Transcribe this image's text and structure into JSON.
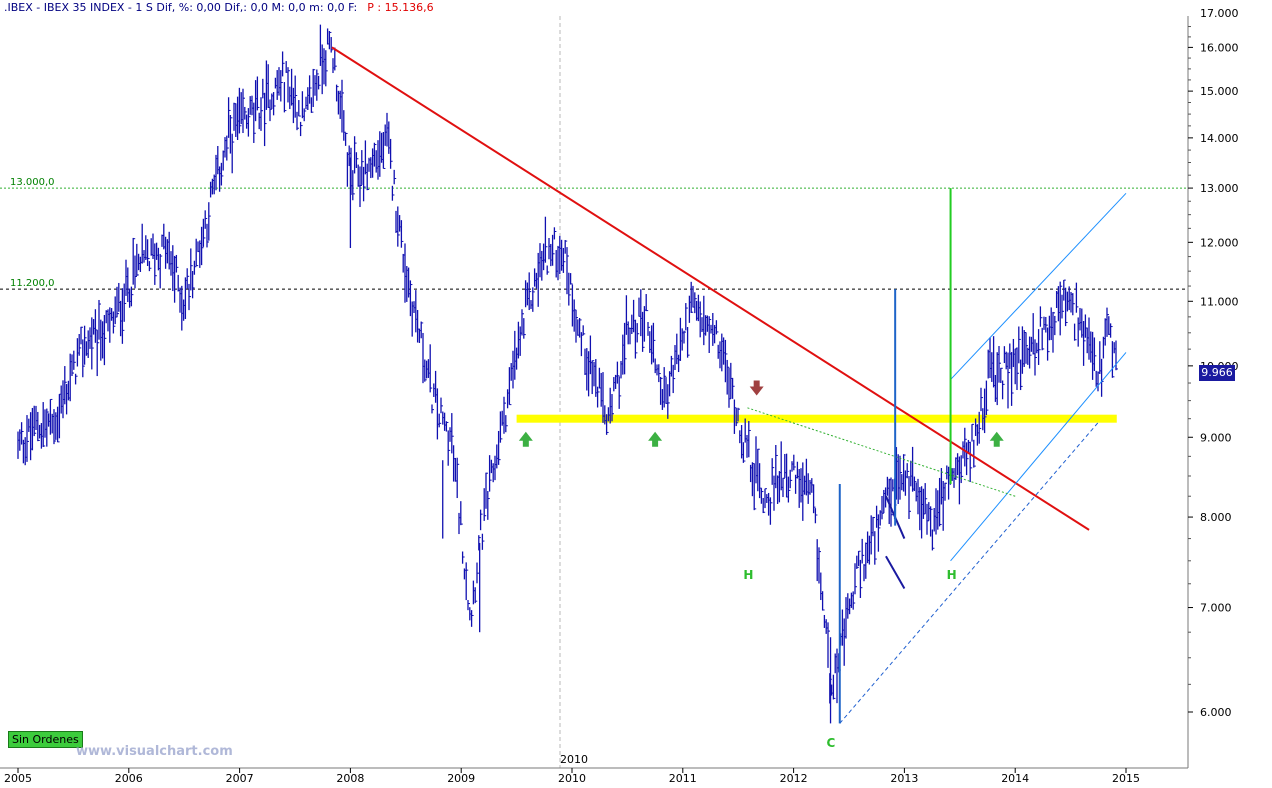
{
  "header": {
    "title": ".IBEX - IBEX 35 INDEX -  1 S Dif, %: 0,00 Dif,: 0,0 M: 0,0 m: 0,0 F:",
    "price": "P : 15.136,6"
  },
  "order_button": "Sin Ordenes",
  "watermark": "www.visualchart.com",
  "current_price_label": "9.966",
  "colors": {
    "bars": "#1010b0",
    "downtrend": "#e01010",
    "support_band": "#ffff00",
    "channel": "#1e90ff",
    "signal_arrow_up": "#3cb043",
    "signal_arrow_down": "#a04040",
    "vertical_green": "#22cc22",
    "vertical_blue": "#1e64c8"
  },
  "chart_data": {
    "type": "ohlc",
    "title": ".IBEX - IBEX 35 INDEX",
    "x_axis": {
      "type": "date",
      "ticks": [
        "2005",
        "2006",
        "2007",
        "2008",
        "2009",
        "2010",
        "2011",
        "2012",
        "2013",
        "2014",
        "2015"
      ],
      "marker": "2010"
    },
    "y_axis": {
      "scale": "log",
      "range": [
        5600,
        17000
      ],
      "ticks": [
        "6.000",
        "7.000",
        "8.000",
        "9.000",
        "10.000",
        "11.000",
        "12.000",
        "13.000",
        "14.000",
        "15.000",
        "16.000"
      ]
    },
    "horizontal_levels": [
      {
        "label": "13.000,0",
        "value": 13000
      },
      {
        "label": "11.200,0",
        "value": 11200
      }
    ],
    "price_path": [
      [
        "2005-01",
        8850
      ],
      [
        "2005-03",
        9150
      ],
      [
        "2005-05",
        9200
      ],
      [
        "2005-08",
        10300
      ],
      [
        "2005-11",
        10600
      ],
      [
        "2006-02",
        11600
      ],
      [
        "2006-05",
        11900
      ],
      [
        "2006-07",
        11000
      ],
      [
        "2006-10",
        12800
      ],
      [
        "2006-12",
        14100
      ],
      [
        "2007-03",
        14600
      ],
      [
        "2007-06",
        15300
      ],
      [
        "2007-08",
        14300
      ],
      [
        "2007-10",
        15800
      ],
      [
        "2007-11",
        16000
      ],
      [
        "2008-01",
        13200
      ],
      [
        "2008-03",
        13400
      ],
      [
        "2008-05",
        13900
      ],
      [
        "2008-07",
        11500
      ],
      [
        "2008-10",
        9500
      ],
      [
        "2008-12",
        8900
      ],
      [
        "2009-02",
        6900
      ],
      [
        "2009-03",
        7700
      ],
      [
        "2009-06",
        9500
      ],
      [
        "2009-08",
        10800
      ],
      [
        "2009-10",
        11800
      ],
      [
        "2009-12",
        11900
      ],
      [
        "2010-02",
        10400
      ],
      [
        "2010-05",
        9200
      ],
      [
        "2010-07",
        10500
      ],
      [
        "2010-09",
        10800
      ],
      [
        "2010-11",
        9500
      ],
      [
        "2011-02",
        10900
      ],
      [
        "2011-05",
        10300
      ],
      [
        "2011-08",
        8800
      ],
      [
        "2011-10",
        8200
      ],
      [
        "2011-12",
        8600
      ],
      [
        "2012-03",
        8200
      ],
      [
        "2012-05",
        6300
      ],
      [
        "2012-06",
        6500
      ],
      [
        "2012-08",
        7400
      ],
      [
        "2012-10",
        7800
      ],
      [
        "2012-12",
        8400
      ],
      [
        "2013-02",
        8500
      ],
      [
        "2013-04",
        7900
      ],
      [
        "2013-06",
        8500
      ],
      [
        "2013-08",
        8700
      ],
      [
        "2013-10",
        9800
      ],
      [
        "2013-12",
        9900
      ],
      [
        "2014-02",
        10200
      ],
      [
        "2014-04",
        10500
      ],
      [
        "2014-06",
        11000
      ],
      [
        "2014-08",
        10700
      ],
      [
        "2014-10",
        9800
      ],
      [
        "2014-11",
        10500
      ],
      [
        "2014-12",
        9966
      ]
    ],
    "annotations": {
      "downtrend_line": {
        "from": [
          "2007-11",
          16000
        ],
        "to": [
          "2014-09",
          7850
        ]
      },
      "support_band": {
        "value": 9250,
        "from": "2009-07",
        "to": "2014-12"
      },
      "channel_upper": {
        "from": [
          "2013-06",
          9800
        ],
        "to": [
          "2015-01",
          12900
        ]
      },
      "channel_lower": {
        "from": [
          "2013-06",
          7500
        ],
        "to": [
          "2015-01",
          10200
        ]
      },
      "dashed_trend": {
        "from": [
          "2012-06",
          5900
        ],
        "to": [
          "2014-10",
          9200
        ]
      },
      "green_dotted": {
        "from": [
          "2011-08",
          9400
        ],
        "to": [
          "2014-01",
          8250
        ]
      },
      "pattern_labels": [
        "H",
        "H",
        "C"
      ],
      "vertical_lines": [
        {
          "date": "2012-06",
          "from": 5900,
          "to": 8400,
          "color": "blue"
        },
        {
          "date": "2012-12",
          "from": 7900,
          "to": 11200,
          "color": "blue"
        },
        {
          "date": "2013-06",
          "from": 8400,
          "to": 13000,
          "color": "green"
        }
      ]
    }
  }
}
